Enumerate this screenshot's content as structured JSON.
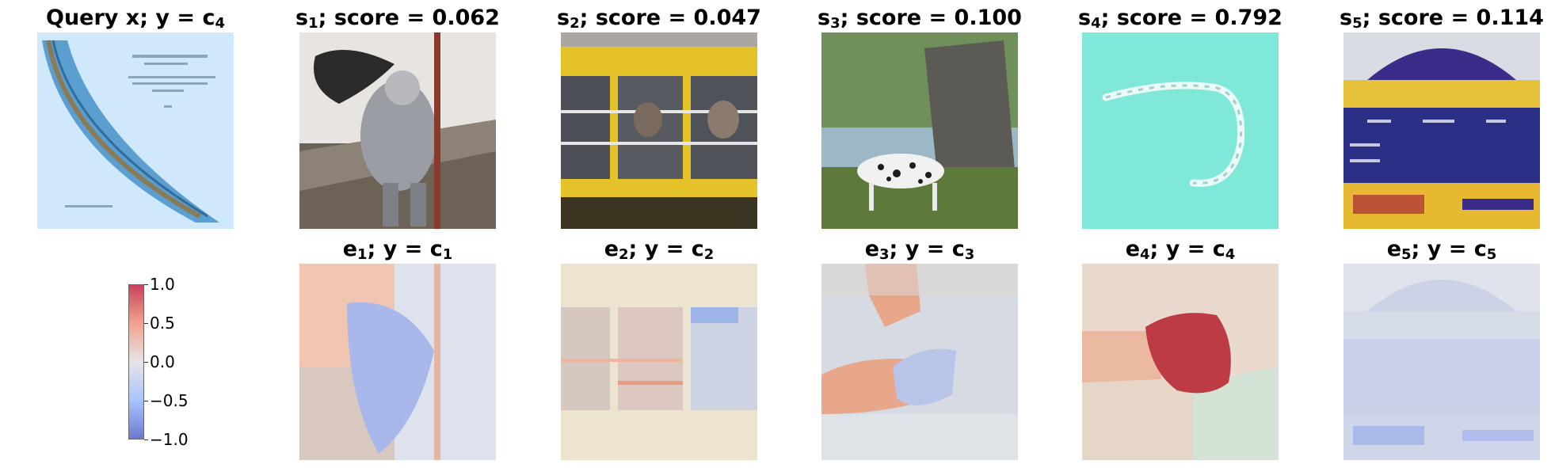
{
  "query": {
    "title_main": "Query x; y = c",
    "title_sub": "4",
    "image": "worm-on-blue-page"
  },
  "samples": [
    {
      "label": "s",
      "index": "1",
      "score_text": "; score = 0.062",
      "score": 0.062,
      "image": "armored-knight-statue"
    },
    {
      "label": "s",
      "index": "2",
      "score_text": "; score = 0.047",
      "score": 0.047,
      "image": "yellow-school-bus-windows"
    },
    {
      "label": "s",
      "index": "3",
      "score_text": "; score = 0.100",
      "score": 0.1,
      "image": "dalmatian-dog-grass"
    },
    {
      "label": "s",
      "index": "4",
      "score_text": "; score = 0.792",
      "score": 0.792,
      "image": "worm-on-turquoise"
    },
    {
      "label": "s",
      "index": "5",
      "score_text": "; score = 0.114",
      "score": 0.114,
      "image": "scoreboard-sign"
    }
  ],
  "explanations": [
    {
      "label": "e",
      "index": "1",
      "class_text": "; y = c",
      "class_index": "1",
      "heatmap": "mixed-weak"
    },
    {
      "label": "e",
      "index": "2",
      "class_text": "; y = c",
      "class_index": "2",
      "heatmap": "mixed-weak"
    },
    {
      "label": "e",
      "index": "3",
      "class_text": "; y = c",
      "class_index": "3",
      "heatmap": "mixed-orange"
    },
    {
      "label": "e",
      "index": "4",
      "class_text": "; y = c",
      "class_index": "4",
      "heatmap": "strong-red-center"
    },
    {
      "label": "e",
      "index": "5",
      "class_text": "; y = c",
      "class_index": "5",
      "heatmap": "weak-blue"
    }
  ],
  "colorbar": {
    "colormap": "coolwarm",
    "ticks": [
      "1.0",
      "0.5",
      "0.0",
      "−0.5",
      "−1.0"
    ],
    "min": -1.0,
    "max": 1.0
  }
}
